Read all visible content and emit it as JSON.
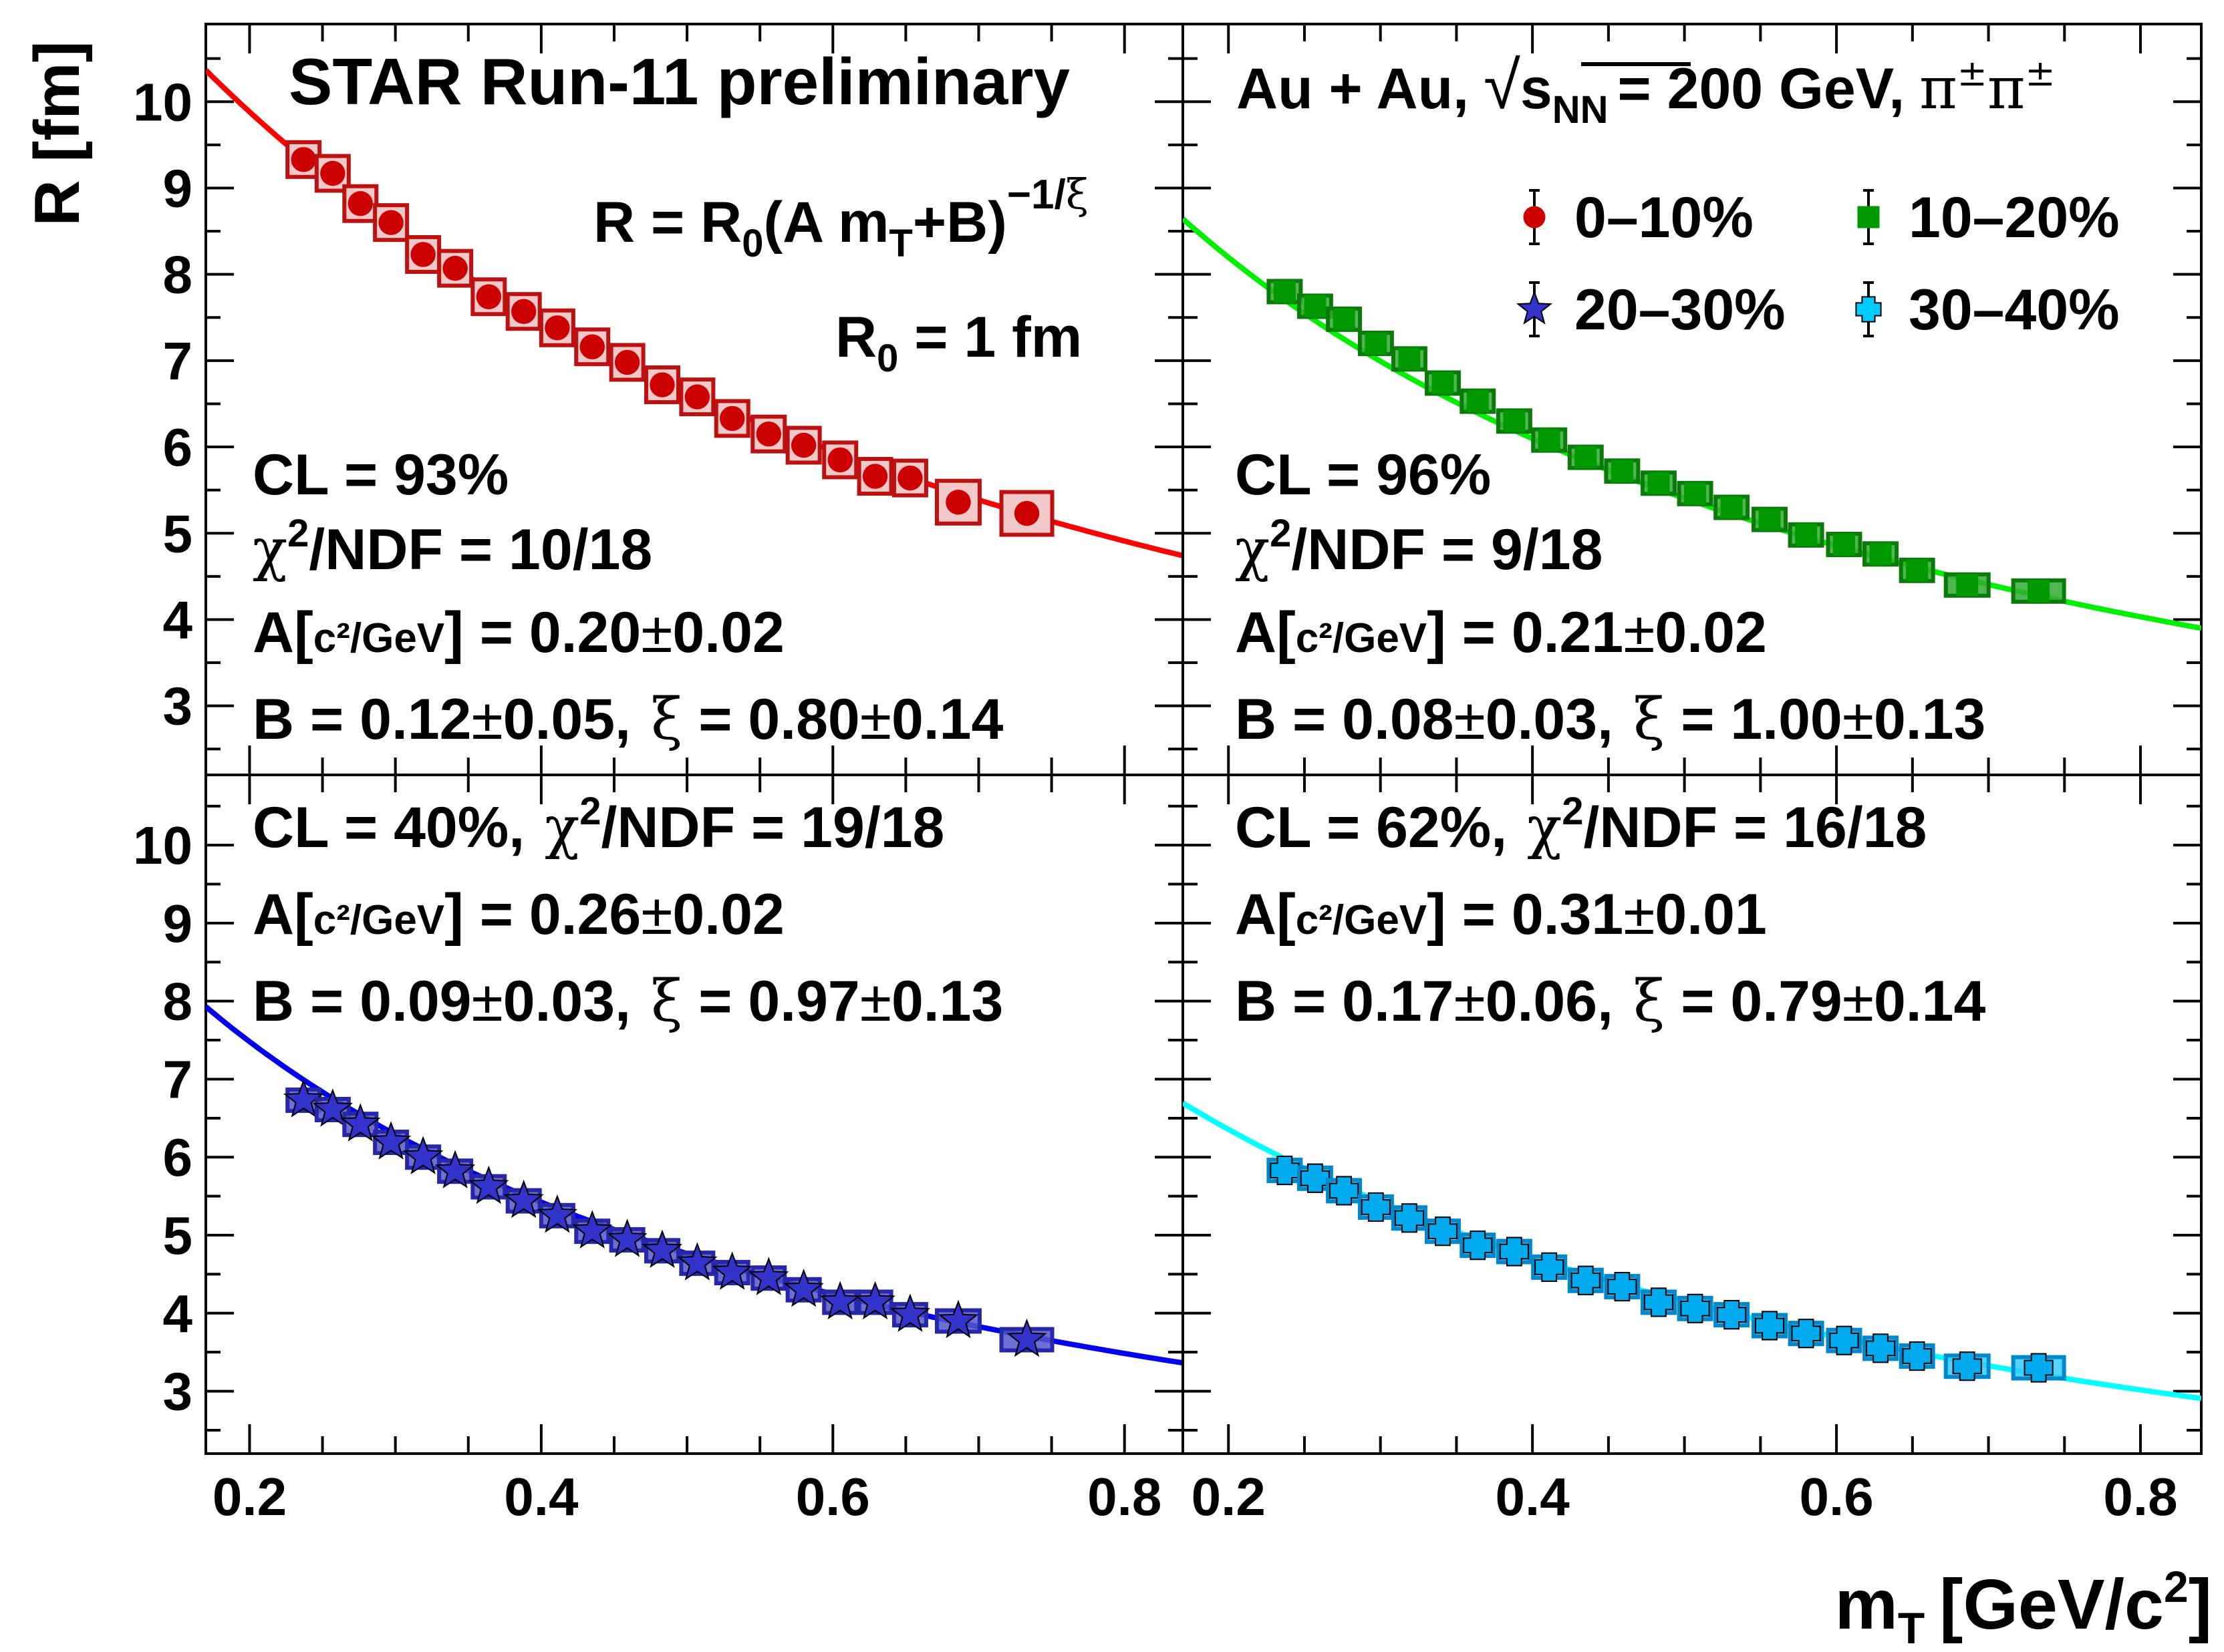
{
  "chart_data": {
    "type": "scatter",
    "xlabel": "m",
    "xlabel_sub": "T",
    "xlabel_unit": "[GeV/c",
    "xlabel_unit_sup": "2",
    "xlabel_unit_close": "]",
    "ylabel": "R [fm]",
    "xlim": [
      0.17,
      0.84
    ],
    "ylim": [
      2.2,
      10.9
    ],
    "xticks": [
      "0.2",
      "0.4",
      "0.6",
      "0.8"
    ],
    "yticks": [
      "3",
      "4",
      "5",
      "6",
      "7",
      "8",
      "9",
      "10"
    ],
    "header_left": "STAR Run-11 preliminary",
    "header_right": {
      "system": "Au + Au,",
      "sqrt_symbol": "√",
      "energy_s": "s",
      "energy_sub": "NN",
      "energy_value": "= 200 GeV,",
      "particle": "π",
      "charge": "±"
    },
    "formula": {
      "lhs": "R = R",
      "r0_sub": "0",
      "mid": "(A m",
      "mt_sub": "T",
      "rhs": "+B)",
      "exponent": "−1/",
      "exponent_xi": "ξ"
    },
    "r0_note": {
      "prefix": "R",
      "sub": "0",
      "suffix": " = 1 fm"
    },
    "legend": [
      {
        "label": "0–10%",
        "marker": "circle",
        "color": "#cc0000"
      },
      {
        "label": "10–20%",
        "marker": "square",
        "color": "#009900"
      },
      {
        "label": "20–30%",
        "marker": "star",
        "color": "#3333cc"
      },
      {
        "label": "30–40%",
        "marker": "cross",
        "color": "#00ccff"
      }
    ],
    "symbols": {
      "chi": "χ",
      "xi": "ξ",
      "pm": "±",
      "sq": "2"
    },
    "panels": [
      {
        "centrality": "0–10%",
        "color": "#ff0000",
        "marker_color": "#cc0000",
        "box_fill": "#f2c8c8",
        "box_stroke": "#bb1111",
        "marker": "circle",
        "fit": {
          "A": 0.2,
          "B": 0.12,
          "xi": 0.8
        },
        "stats": {
          "cl": "CL = 93%",
          "ndf_label": "/NDF = 10/18",
          "a_prefix": "A[",
          "a_units": "c²/GeV",
          "a_value": "] = 0.20",
          "a_err": "0.02",
          "b_value": "B = 0.12",
          "b_err": "0.05,",
          "xi_value": " = 0.80",
          "xi_err": "0.14"
        },
        "points": {
          "x": [
            0.237,
            0.257,
            0.276,
            0.297,
            0.319,
            0.341,
            0.364,
            0.388,
            0.411,
            0.435,
            0.459,
            0.483,
            0.507,
            0.531,
            0.556,
            0.58,
            0.605,
            0.629,
            0.653,
            0.686,
            0.733
          ],
          "y": [
            9.33,
            9.17,
            8.82,
            8.6,
            8.23,
            8.07,
            7.74,
            7.57,
            7.38,
            7.16,
            6.98,
            6.72,
            6.58,
            6.33,
            6.15,
            6.02,
            5.85,
            5.66,
            5.64,
            5.36,
            5.23
          ]
        }
      },
      {
        "centrality": "10–20%",
        "color": "#00ee00",
        "marker_color": "#009900",
        "box_fill": "#33aa33",
        "box_stroke": "#0a7a0a",
        "marker": "square",
        "fit": {
          "A": 0.21,
          "B": 0.08,
          "xi": 1.0
        },
        "stats": {
          "cl": "CL = 96%",
          "ndf_label": "/NDF = 9/18",
          "a_prefix": "A[",
          "a_units": "c²/GeV",
          "a_value": "] = 0.21",
          "a_err": "0.02",
          "b_value": "B = 0.08",
          "b_err": "0.03,",
          "xi_value": " = 1.00",
          "xi_err": "0.13"
        },
        "points": {
          "x": [
            0.237,
            0.257,
            0.276,
            0.297,
            0.319,
            0.341,
            0.364,
            0.388,
            0.411,
            0.435,
            0.459,
            0.483,
            0.507,
            0.531,
            0.556,
            0.58,
            0.605,
            0.629,
            0.653,
            0.686,
            0.733
          ],
          "y": [
            7.8,
            7.63,
            7.48,
            7.2,
            7.02,
            6.74,
            6.53,
            6.3,
            6.08,
            5.88,
            5.72,
            5.58,
            5.46,
            5.3,
            5.16,
            4.98,
            4.87,
            4.76,
            4.57,
            4.4,
            4.33
          ]
        }
      },
      {
        "centrality": "20–30%",
        "color": "#0000ee",
        "marker_color": "#3333cc",
        "box_fill": "#5555cc",
        "box_stroke": "#2727aa",
        "marker": "star",
        "fit": {
          "A": 0.26,
          "B": 0.09,
          "xi": 0.97
        },
        "stats": {
          "cl": "CL = 40%,",
          "ndf_label": "/NDF = 19/18",
          "a_prefix": "A[",
          "a_units": "c²/GeV",
          "a_value": "] = 0.26",
          "a_err": "0.02",
          "b_value": "B = 0.09",
          "b_err": "0.03,",
          "xi_value": " = 0.97",
          "xi_err": "0.13"
        },
        "points": {
          "x": [
            0.237,
            0.257,
            0.276,
            0.297,
            0.319,
            0.341,
            0.364,
            0.388,
            0.411,
            0.435,
            0.459,
            0.483,
            0.507,
            0.531,
            0.556,
            0.58,
            0.605,
            0.629,
            0.653,
            0.686,
            0.733
          ],
          "y": [
            6.73,
            6.61,
            6.42,
            6.19,
            6.0,
            5.82,
            5.62,
            5.44,
            5.25,
            5.05,
            4.94,
            4.8,
            4.64,
            4.52,
            4.45,
            4.3,
            4.14,
            4.14,
            3.98,
            3.9,
            3.66
          ]
        }
      },
      {
        "centrality": "30–40%",
        "color": "#00ffff",
        "marker_color": "#00aaee",
        "box_fill": "#33ccff",
        "box_stroke": "#0088cc",
        "marker": "cross",
        "fit": {
          "A": 0.31,
          "B": 0.17,
          "xi": 0.79
        },
        "stats": {
          "cl": "CL = 62%,",
          "ndf_label": "/NDF = 16/18",
          "a_prefix": "A[",
          "a_units": "c²/GeV",
          "a_value": "] = 0.31",
          "a_err": "0.01",
          "b_value": "B = 0.17",
          "b_err": "0.06,",
          "xi_value": " = 0.79",
          "xi_err": "0.14"
        },
        "points": {
          "x": [
            0.237,
            0.257,
            0.276,
            0.297,
            0.319,
            0.341,
            0.364,
            0.388,
            0.411,
            0.435,
            0.459,
            0.483,
            0.507,
            0.531,
            0.556,
            0.58,
            0.605,
            0.629,
            0.653,
            0.686,
            0.733
          ],
          "y": [
            5.83,
            5.73,
            5.57,
            5.36,
            5.22,
            5.05,
            4.87,
            4.79,
            4.59,
            4.42,
            4.34,
            4.14,
            4.06,
            3.98,
            3.84,
            3.74,
            3.65,
            3.55,
            3.45,
            3.32,
            3.3
          ]
        }
      }
    ]
  }
}
